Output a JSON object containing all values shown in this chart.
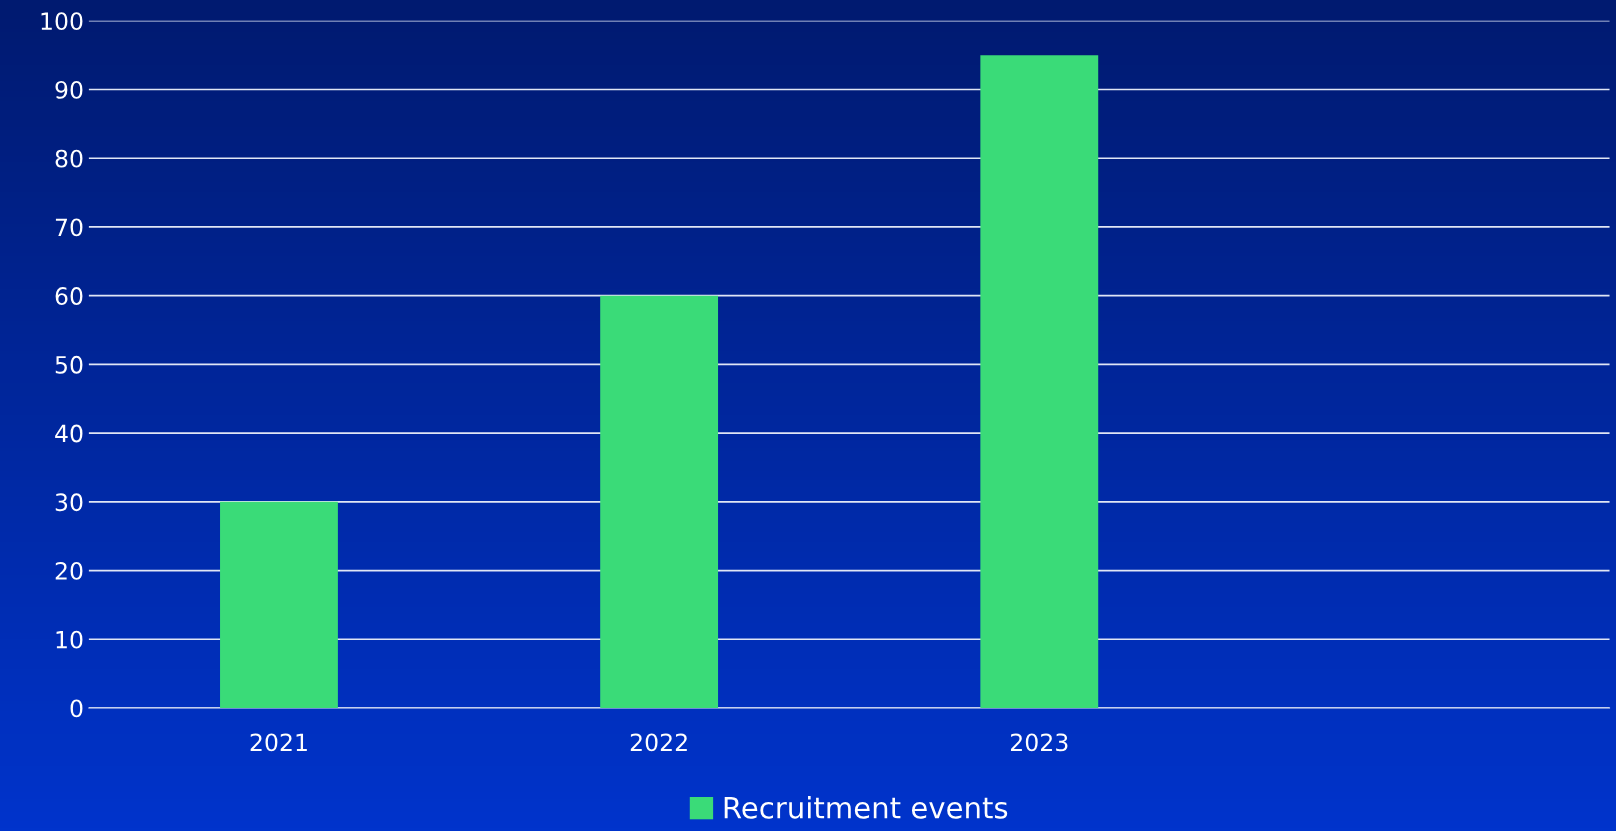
{
  "chart_data": {
    "type": "bar",
    "categories": [
      "2021",
      "2022",
      "2023",
      null
    ],
    "series": [
      {
        "name": "Recruitment events",
        "color": "#3adb78",
        "values": [
          30,
          60,
          95,
          null
        ]
      }
    ],
    "ylim": [
      0,
      100
    ],
    "yticks": [
      0,
      10,
      20,
      30,
      40,
      50,
      60,
      70,
      80,
      90,
      100
    ],
    "grid": "y",
    "legend": "bottom"
  }
}
